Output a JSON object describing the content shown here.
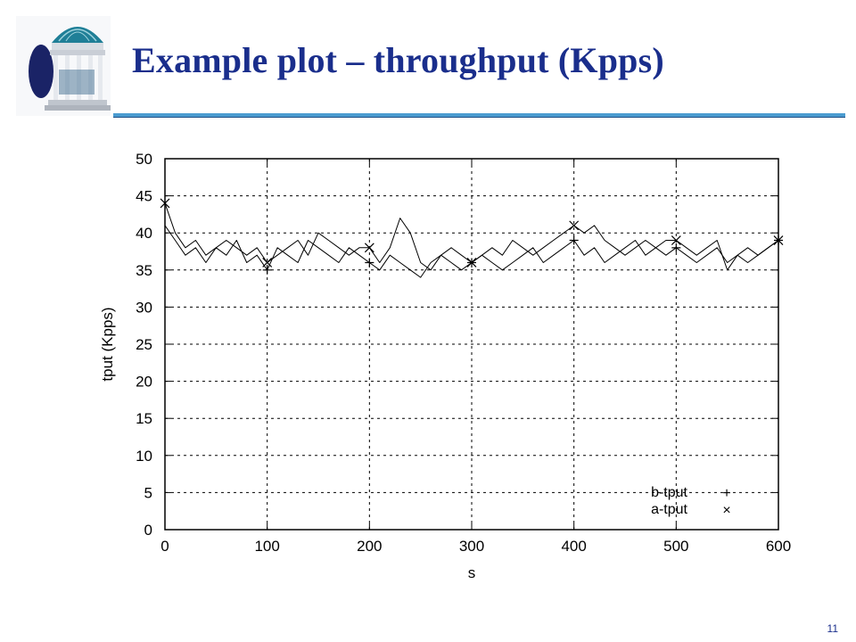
{
  "slide": {
    "title": "Example plot – throughput (Kpps)",
    "page_number": "11"
  },
  "logo": {
    "icon": "old-well-icon"
  },
  "colors": {
    "title": "#1a2e8c",
    "rule": "#4a9bd0",
    "series": "#000000"
  },
  "chart_data": {
    "type": "line",
    "xlabel": "s",
    "ylabel": "tput (Kpps)",
    "xlim": [
      0,
      600
    ],
    "ylim": [
      0,
      50
    ],
    "xticks": [
      0,
      100,
      200,
      300,
      400,
      500,
      600
    ],
    "yticks": [
      0,
      5,
      10,
      15,
      20,
      25,
      30,
      35,
      40,
      45,
      50
    ],
    "grid": true,
    "legend_position": "bottom-right",
    "series": [
      {
        "name": "b-tput",
        "marker": "+",
        "marker_x": [
          100,
          200,
          300,
          400,
          500,
          600
        ],
        "x": [
          0,
          10,
          20,
          30,
          40,
          50,
          60,
          70,
          80,
          90,
          100,
          110,
          120,
          130,
          140,
          150,
          160,
          170,
          180,
          190,
          200,
          210,
          220,
          230,
          240,
          250,
          260,
          270,
          280,
          290,
          300,
          310,
          320,
          330,
          340,
          350,
          360,
          370,
          380,
          390,
          400,
          410,
          420,
          430,
          440,
          450,
          460,
          470,
          480,
          490,
          500,
          510,
          520,
          530,
          540,
          550,
          560,
          570,
          580,
          590,
          600
        ],
        "y": [
          41,
          39,
          37,
          38,
          36,
          38,
          37,
          39,
          36,
          37,
          35,
          38,
          37,
          36,
          39,
          38,
          37,
          36,
          38,
          37,
          36,
          35,
          37,
          36,
          35,
          34,
          36,
          37,
          36,
          35,
          36,
          37,
          36,
          35,
          36,
          37,
          38,
          36,
          37,
          38,
          39,
          37,
          38,
          36,
          37,
          38,
          39,
          37,
          38,
          37,
          38,
          37,
          36,
          37,
          38,
          36,
          37,
          36,
          37,
          38,
          39
        ]
      },
      {
        "name": "a-tput",
        "marker": "×",
        "marker_x": [
          0,
          100,
          200,
          300,
          400,
          500,
          600
        ],
        "x": [
          0,
          10,
          20,
          30,
          40,
          50,
          60,
          70,
          80,
          90,
          100,
          110,
          120,
          130,
          140,
          150,
          160,
          170,
          180,
          190,
          200,
          210,
          220,
          230,
          240,
          250,
          260,
          270,
          280,
          290,
          300,
          310,
          320,
          330,
          340,
          350,
          360,
          370,
          380,
          390,
          400,
          410,
          420,
          430,
          440,
          450,
          460,
          470,
          480,
          490,
          500,
          510,
          520,
          530,
          540,
          550,
          560,
          570,
          580,
          590,
          600
        ],
        "y": [
          44,
          40,
          38,
          39,
          37,
          38,
          39,
          38,
          37,
          38,
          36,
          37,
          38,
          39,
          37,
          40,
          39,
          38,
          37,
          38,
          38,
          36,
          38,
          42,
          40,
          36,
          35,
          37,
          38,
          37,
          36,
          37,
          38,
          37,
          39,
          38,
          37,
          38,
          39,
          40,
          41,
          40,
          41,
          39,
          38,
          37,
          38,
          39,
          38,
          39,
          39,
          38,
          37,
          38,
          39,
          35,
          37,
          38,
          37,
          38,
          39
        ]
      }
    ]
  }
}
